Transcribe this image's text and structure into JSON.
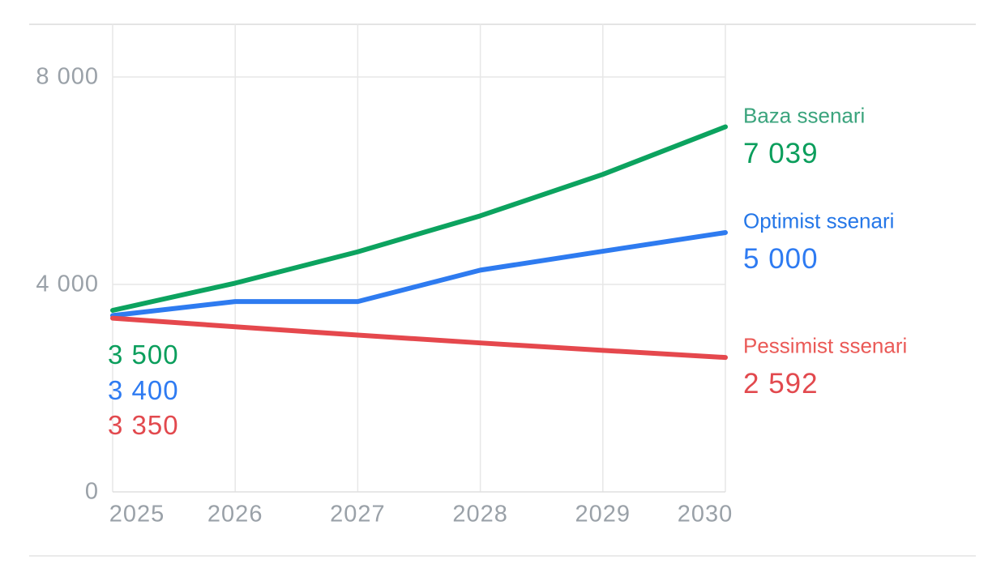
{
  "chart_data": {
    "type": "line",
    "title": "",
    "xlabel": "",
    "ylabel": "",
    "x_labels": [
      "2025",
      "2026",
      "2027",
      "2028",
      "2029",
      "2030"
    ],
    "y_ticks": [
      {
        "label": "0",
        "value": 0
      },
      {
        "label": "4 000",
        "value": 4000
      },
      {
        "label": "8 000",
        "value": 8000
      }
    ],
    "ylim": [
      0,
      9040
    ],
    "grid": true,
    "legend_position": "right of line ends",
    "colors": {
      "axis_text": "#9aa1a8",
      "gridline": "#e7e7e7",
      "baseline": "#dfdfdf",
      "background": "#ffffff"
    },
    "series": [
      {
        "name": "Baza ssenari",
        "line_color": "#0ca35f",
        "name_color": "#3ba47d",
        "value_color": "#0b9e5c",
        "start_label": "3 500",
        "end_label": "7 039",
        "values": [
          3500,
          4025,
          4629,
          5323,
          6122,
          7039
        ]
      },
      {
        "name": "Optimist ssenari",
        "line_color": "#2e7bf0",
        "name_color": "#2577e8",
        "value_color": "#2e7bf2",
        "start_label": "3 400",
        "end_label": "5 000",
        "values": [
          3400,
          3670,
          3670,
          4275,
          4640,
          5000
        ]
      },
      {
        "name": "Pessimist ssenari",
        "line_color": "#e5484d",
        "name_color": "#ea5a57",
        "value_color": "#e2494e",
        "start_label": "3 350",
        "end_label": "2 592",
        "values": [
          3350,
          3183,
          3023,
          2872,
          2729,
          2592
        ]
      }
    ]
  }
}
